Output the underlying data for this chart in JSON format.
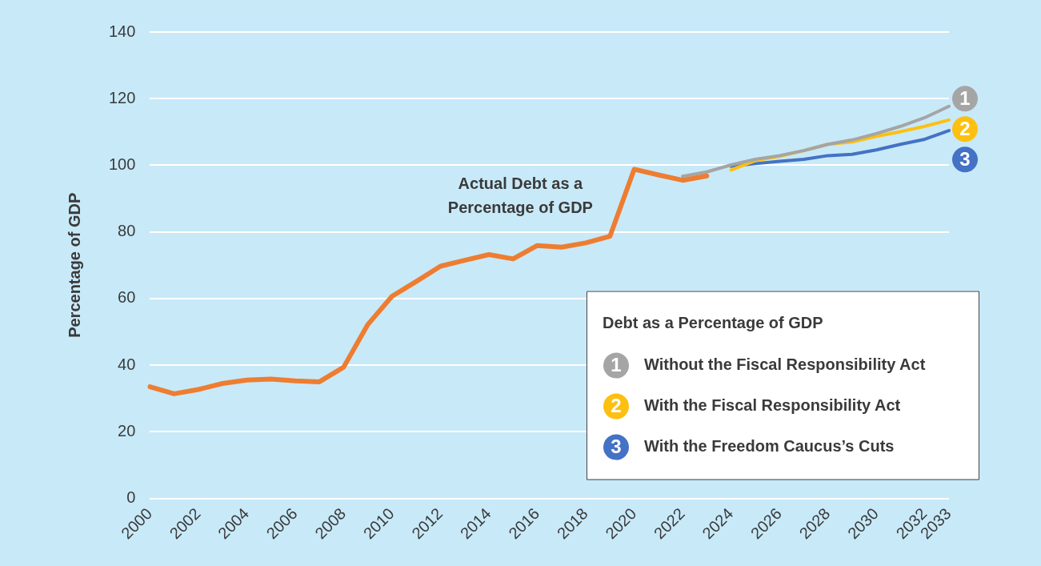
{
  "chart_data": {
    "type": "line",
    "ylabel": "Percentage of GDP",
    "legend_title": "Debt as a Percentage of GDP",
    "legend": "bottom right",
    "grid": "y",
    "marker": "none",
    "annotations": [
      "1",
      "2",
      "3"
    ],
    "line_style": "solid",
    "categories": [
      "2000",
      null,
      "2002",
      null,
      "2004",
      null,
      "2006",
      null,
      "2008",
      null,
      "2010",
      null,
      "2012",
      null,
      "2014",
      null,
      "2016",
      null,
      "2018",
      null,
      "2020",
      null,
      "2022",
      null,
      "2024",
      null,
      "2026",
      null,
      "2028",
      null,
      "2030",
      null,
      "2032",
      "2033"
    ],
    "ylim": [
      0,
      140
    ],
    "yticks": [
      0,
      20,
      40,
      60,
      80,
      100,
      120,
      140
    ],
    "series": [
      {
        "name": "Actual Debt as a Percentage of GDP",
        "color": "#ee7d31",
        "values": [
          33.5,
          31.4,
          32.7,
          34.5,
          35.5,
          35.8,
          35.3,
          35.0,
          39.4,
          52.2,
          60.7,
          65.1,
          69.7,
          71.5,
          73.2,
          71.9,
          75.9,
          75.4,
          76.7,
          78.7,
          98.8,
          97.1,
          95.5,
          96.8,
          null,
          null,
          null,
          null,
          null,
          null,
          null,
          null,
          null,
          null
        ]
      },
      {
        "name": "Without the Fiscal Responsibility Act",
        "color": "#a5a5a5",
        "values": [
          null,
          null,
          null,
          null,
          null,
          null,
          null,
          null,
          null,
          null,
          null,
          null,
          null,
          null,
          null,
          null,
          null,
          null,
          null,
          null,
          null,
          null,
          96.7,
          98.0,
          100.1,
          101.8,
          102.9,
          104.4,
          106.3,
          107.6,
          109.5,
          111.7,
          114.3,
          117.7
        ]
      },
      {
        "name": "With the Fiscal Responsibility Act",
        "color": "#fdc010",
        "values": [
          null,
          null,
          null,
          null,
          null,
          null,
          null,
          null,
          null,
          null,
          null,
          null,
          null,
          null,
          null,
          null,
          null,
          null,
          null,
          null,
          null,
          null,
          null,
          null,
          98.6,
          101.4,
          102.7,
          104.4,
          106.3,
          107.0,
          108.7,
          110.1,
          111.7,
          113.6
        ]
      },
      {
        "name": "With the Freedom Caucus’s Cuts",
        "color": "#4472c4",
        "values": [
          null,
          null,
          null,
          null,
          null,
          null,
          null,
          null,
          null,
          null,
          null,
          null,
          null,
          null,
          null,
          null,
          null,
          null,
          null,
          null,
          null,
          null,
          null,
          null,
          99.7,
          100.5,
          101.2,
          101.8,
          102.9,
          103.3,
          104.6,
          106.3,
          107.8,
          110.4
        ]
      }
    ]
  }
}
